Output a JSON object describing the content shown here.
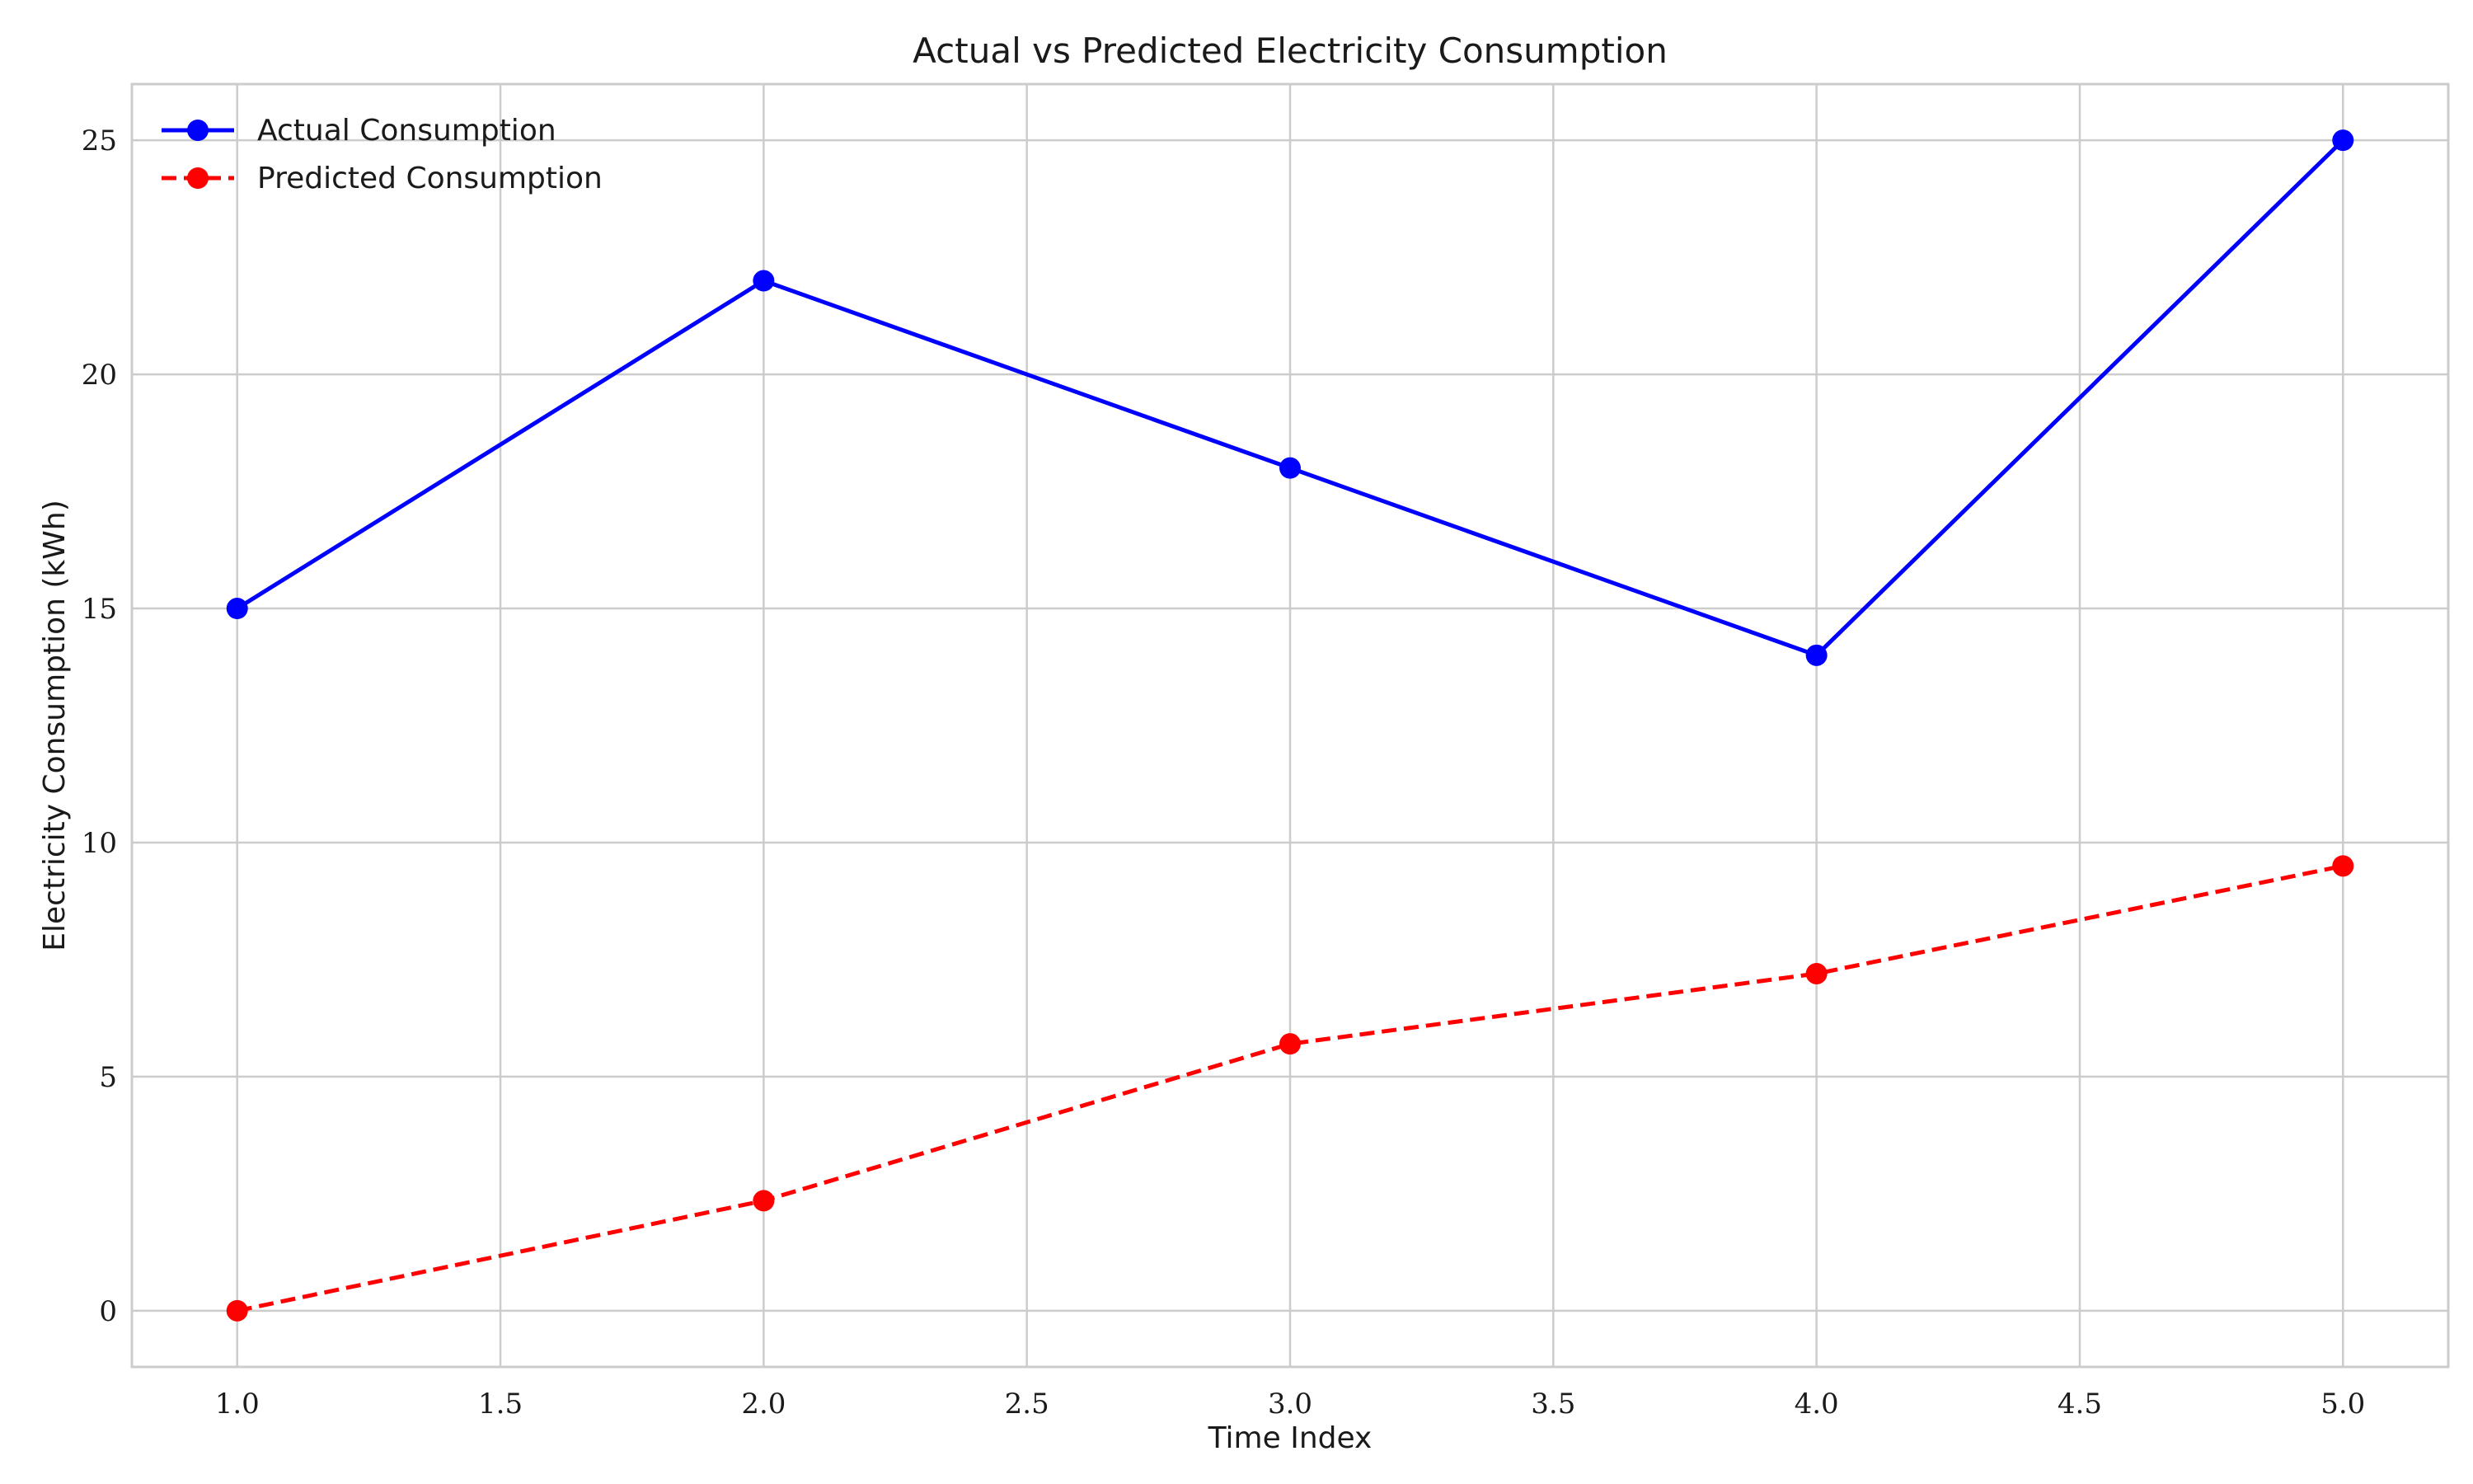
{
  "chart_data": {
    "type": "line",
    "title": "Actual vs Predicted Electricity Consumption",
    "xlabel": "Time Index",
    "ylabel": "Electricity Consumption (kWh)",
    "xlim": [
      0.8,
      5.2
    ],
    "ylim": [
      -1.2,
      26.2
    ],
    "x_ticks": [
      1.0,
      1.5,
      2.0,
      2.5,
      3.0,
      3.5,
      4.0,
      4.5,
      5.0
    ],
    "x_tick_labels": [
      "1.0",
      "1.5",
      "2.0",
      "2.5",
      "3.0",
      "3.5",
      "4.0",
      "4.5",
      "5.0"
    ],
    "y_ticks": [
      0,
      5,
      10,
      15,
      20,
      25
    ],
    "y_tick_labels": [
      "0",
      "5",
      "10",
      "15",
      "20",
      "25"
    ],
    "grid": true,
    "legend_position": "top-left",
    "x": [
      1,
      2,
      3,
      4,
      5
    ],
    "series": [
      {
        "name": "Actual Consumption",
        "values": [
          15,
          22,
          18,
          14,
          25
        ],
        "color": "#0000ff",
        "line_style": "solid",
        "marker": "circle"
      },
      {
        "name": "Predicted Consumption",
        "values": [
          0,
          2.35,
          5.7,
          7.2,
          9.5
        ],
        "color": "#ff0000",
        "line_style": "dashed",
        "marker": "circle"
      }
    ]
  }
}
